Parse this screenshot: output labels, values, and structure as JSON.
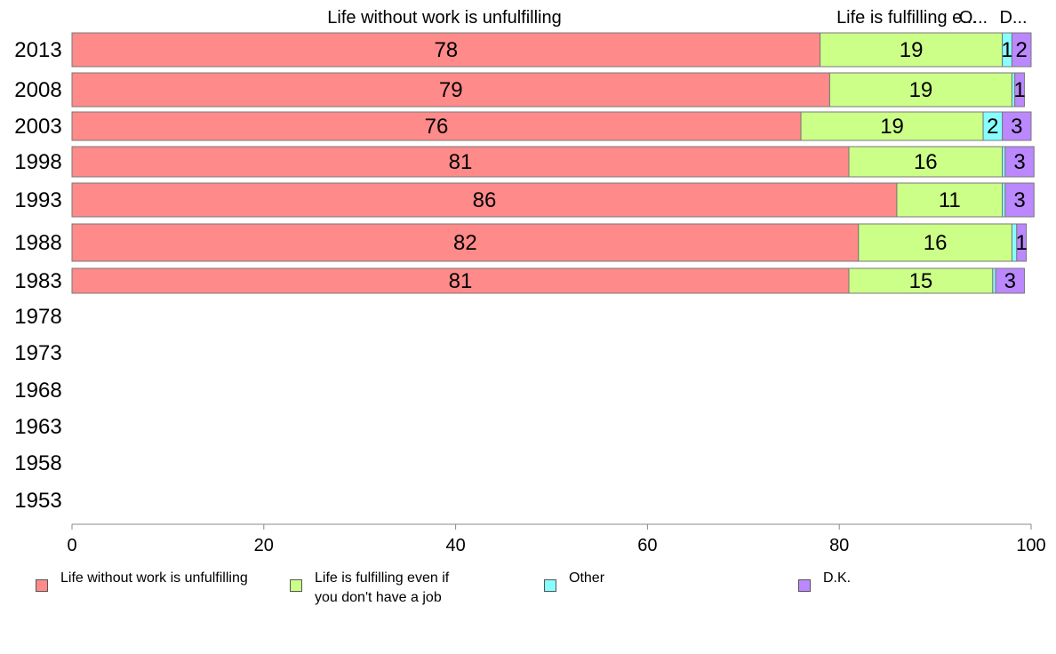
{
  "chart_data": {
    "type": "bar",
    "orientation": "horizontal",
    "stacked": true,
    "categories": [
      "2013",
      "2008",
      "2003",
      "1998",
      "1993",
      "1988",
      "1983",
      "1978",
      "1973",
      "1968",
      "1963",
      "1958",
      "1953"
    ],
    "series": [
      {
        "name": "Life without work is unfulfilling",
        "values": [
          78,
          79,
          76,
          81,
          86,
          82,
          81,
          null,
          null,
          null,
          null,
          null,
          null
        ],
        "color": "#ff8a8a",
        "top_label": "Life without work is unfulfilling"
      },
      {
        "name": "Life is fulfilling even if\nyou don't have a job",
        "values": [
          19,
          19,
          19,
          16,
          11,
          16,
          15,
          null,
          null,
          null,
          null,
          null,
          null
        ],
        "color": "#ccff88",
        "top_label": "Life is fulfilling e..."
      },
      {
        "name": "Other",
        "values": [
          1,
          0.3,
          2,
          0.3,
          0.3,
          0.5,
          0.3,
          null,
          null,
          null,
          null,
          null,
          null
        ],
        "color": "#88ffff",
        "top_label": "O..."
      },
      {
        "name": "D.K.",
        "values": [
          2,
          1,
          3,
          3,
          3,
          1,
          3,
          null,
          null,
          null,
          null,
          null,
          null
        ],
        "color": "#bb88ff",
        "top_label": "D..."
      }
    ],
    "data_labels": [
      [
        "78",
        "79",
        "76",
        "81",
        "86",
        "82",
        "81",
        "",
        "",
        "",
        "",
        "",
        ""
      ],
      [
        "19",
        "19",
        "19",
        "16",
        "11",
        "16",
        "15",
        "",
        "",
        "",
        "",
        "",
        ""
      ],
      [
        "1",
        "",
        "2",
        "",
        "",
        "",
        "",
        "",
        "",
        "",
        "",
        "",
        ""
      ],
      [
        "2",
        "1",
        "3",
        "3",
        "3",
        "1",
        "3",
        "",
        "",
        "",
        "",
        "",
        ""
      ]
    ],
    "xlim": [
      0,
      100
    ],
    "xticks": [
      "0",
      "20",
      "40",
      "60",
      "80",
      "100"
    ],
    "xlabel": "",
    "ylabel": "",
    "grid": false,
    "legend_position": "bottom"
  }
}
